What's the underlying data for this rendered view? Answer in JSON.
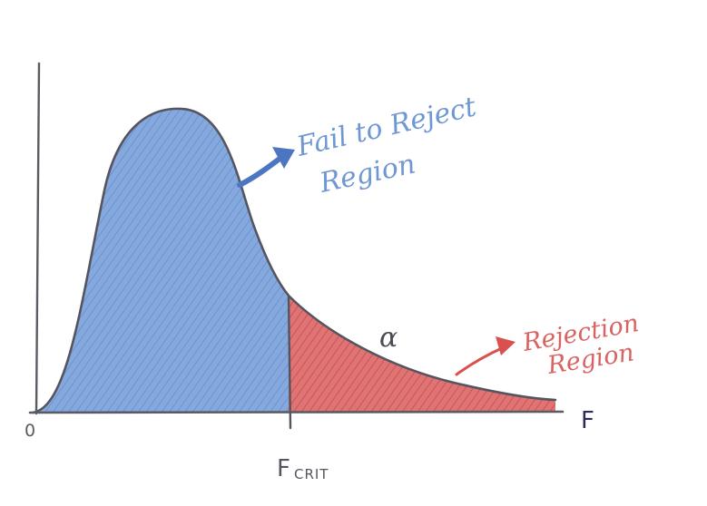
{
  "labels": {
    "fail_line1": "Fail to Reject",
    "fail_line2": "Region",
    "rejection_line1": "Rejection",
    "rejection_line2": "Region",
    "alpha": "α",
    "x_axis": "F",
    "origin": "0",
    "critical_main": "F",
    "critical_sub": "CRIT"
  },
  "colors": {
    "fail_region": "#7ea4da",
    "fail_text": "#6f97d3",
    "fail_arrow": "#4c76c2",
    "rejection_region": "#dc6a6a",
    "rejection_text": "#d96262",
    "rejection_arrow": "#d9504e",
    "curve": "#55555f",
    "axis": "#5b5b63",
    "alpha_text": "#4b4b55",
    "x_label": "#2c2a5a"
  },
  "icons": {
    "fail_arrow": "arrow-icon",
    "rejection_arrow": "arrow-icon"
  }
}
